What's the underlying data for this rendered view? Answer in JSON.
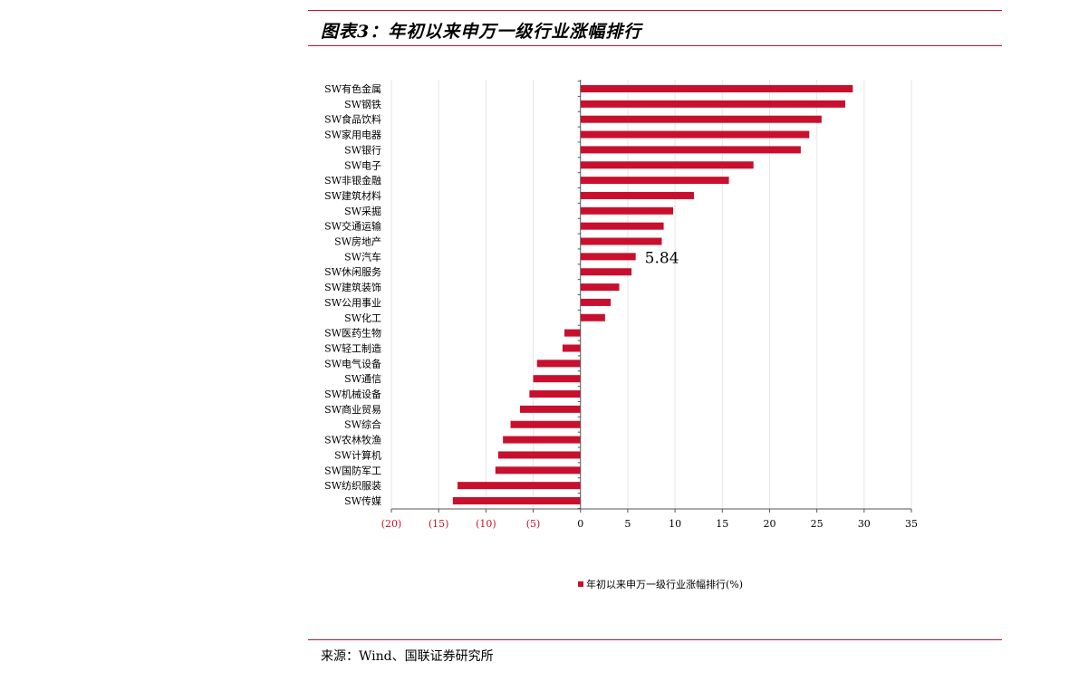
{
  "page": {
    "title": "图表3：年初以来申万一级行业涨幅排行",
    "source": "来源：Wind、国联证券研究所"
  },
  "chart_data": {
    "type": "bar",
    "orientation": "horizontal",
    "categories": [
      "SW有色金属",
      "SW钢铁",
      "SW食品饮料",
      "SW家用电器",
      "SW银行",
      "SW电子",
      "SW非银金融",
      "SW建筑材料",
      "SW采掘",
      "SW交通运输",
      "SW房地产",
      "SW汽车",
      "SW休闲服务",
      "SW建筑装饰",
      "SW公用事业",
      "SW化工",
      "SW医药生物",
      "SW轻工制造",
      "SW电气设备",
      "SW通信",
      "SW机械设备",
      "SW商业贸易",
      "SW综合",
      "SW农林牧渔",
      "SW计算机",
      "SW国防军工",
      "SW纺织服装",
      "SW传媒"
    ],
    "series": [
      {
        "name": "年初以来申万一级行业涨幅排行(%)",
        "values": [
          28.8,
          28.0,
          25.5,
          24.2,
          23.3,
          18.3,
          15.7,
          12.0,
          9.8,
          8.8,
          8.6,
          5.84,
          5.4,
          4.1,
          3.2,
          2.6,
          -1.7,
          -1.9,
          -4.6,
          -5.0,
          -5.4,
          -6.4,
          -7.4,
          -8.2,
          -8.7,
          -9.0,
          -13.0,
          -13.5
        ]
      }
    ],
    "annotation": {
      "category": "SW汽车",
      "text": "5.84"
    },
    "xlim": [
      -20,
      35
    ],
    "ticks": [
      -20,
      -15,
      -10,
      -5,
      0,
      5,
      10,
      15,
      20,
      25,
      30,
      35
    ],
    "tick_labels": [
      "(20)",
      "(15)",
      "(10)",
      "(5)",
      "0",
      "5",
      "10",
      "15",
      "20",
      "25",
      "30",
      "35"
    ],
    "grid": true,
    "legend_position": "bottom",
    "colors": {
      "bar": "#c8102e",
      "negative_tick": "#c8102e",
      "positive_tick": "#000000",
      "grid": "#e6e6e6",
      "axis": "#555555"
    }
  }
}
